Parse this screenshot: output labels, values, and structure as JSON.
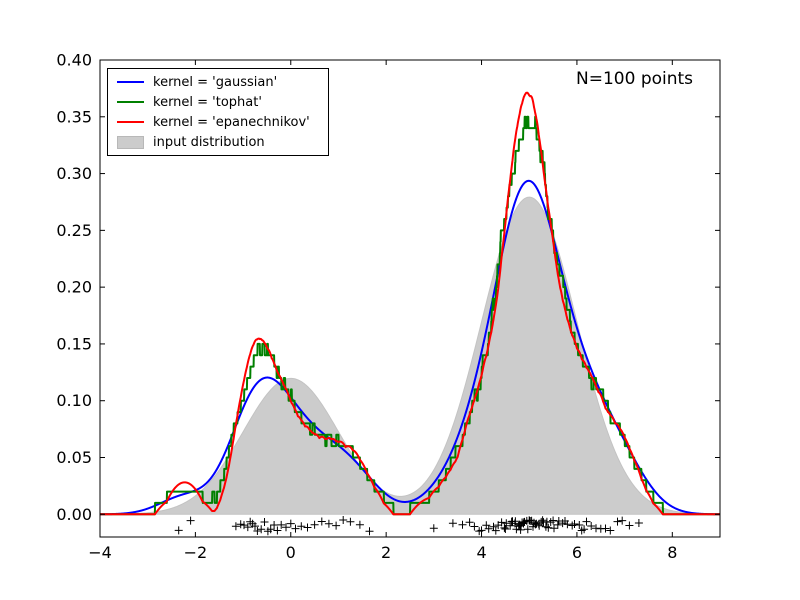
{
  "chart_data": {
    "type": "line",
    "title": "",
    "description": "1D kernel density estimation comparison of three kernels against the true input distribution, with data points shown as a rug of plus markers",
    "annotation": "N=100 points",
    "n_points": 100,
    "bandwidth": 0.5,
    "xlim": [
      -4,
      9
    ],
    "ylim": [
      -0.02,
      0.4
    ],
    "grid": false,
    "background": "#ffffff",
    "xticks": {
      "values": [
        -4,
        -2,
        0,
        2,
        4,
        6,
        8
      ],
      "labels": [
        "−4",
        "−2",
        "0",
        "2",
        "4",
        "6",
        "8"
      ]
    },
    "yticks": {
      "values": [
        0.0,
        0.05,
        0.1,
        0.15,
        0.2,
        0.25,
        0.3,
        0.35,
        0.4
      ],
      "labels": [
        "0.00",
        "0.05",
        "0.10",
        "0.15",
        "0.20",
        "0.25",
        "0.30",
        "0.35",
        "0.40"
      ]
    },
    "legend": {
      "position": "upper left"
    },
    "series": [
      {
        "name": "kernel = 'gaussian'",
        "kind": "kde",
        "kernel": "gaussian",
        "color": "#0000ff",
        "line_width": 2
      },
      {
        "name": "kernel = 'tophat'",
        "kind": "kde",
        "kernel": "tophat",
        "color": "#008000",
        "line_width": 2
      },
      {
        "name": "kernel = 'epanechnikov'",
        "kind": "kde",
        "kernel": "epanechnikov",
        "color": "#ff0000",
        "line_width": 2
      },
      {
        "name": "input distribution",
        "kind": "true-density",
        "fill_color": "#cccccc",
        "edge_color": "#c3c3c3",
        "components": [
          {
            "weight": 0.3,
            "mean": 0,
            "std": 1
          },
          {
            "weight": 0.7,
            "mean": 5,
            "std": 1
          }
        ]
      }
    ],
    "data_points": [
      -2.35,
      -2.1,
      -1.15,
      -1.05,
      -0.98,
      -0.9,
      -0.85,
      -0.8,
      -0.75,
      -0.7,
      -0.62,
      -0.55,
      -0.48,
      -0.42,
      -0.35,
      -0.28,
      -0.2,
      -0.1,
      0.0,
      0.1,
      0.22,
      0.35,
      0.5,
      0.65,
      0.8,
      0.95,
      1.1,
      1.25,
      1.45,
      1.65,
      3.0,
      3.4,
      3.6,
      3.75,
      3.85,
      3.95,
      4.0,
      4.1,
      4.15,
      4.25,
      4.3,
      4.35,
      4.42,
      4.48,
      4.5,
      4.52,
      4.6,
      4.63,
      4.65,
      4.7,
      4.71,
      4.73,
      4.78,
      4.8,
      4.82,
      4.83,
      4.85,
      4.88,
      4.89,
      4.9,
      4.95,
      4.97,
      5.0,
      5.02,
      5.05,
      5.08,
      5.1,
      5.13,
      5.15,
      5.2,
      5.21,
      5.25,
      5.28,
      5.3,
      5.35,
      5.37,
      5.4,
      5.45,
      5.5,
      5.52,
      5.6,
      5.62,
      5.7,
      5.75,
      5.8,
      5.9,
      5.95,
      6.05,
      6.1,
      6.15,
      6.2,
      6.3,
      6.4,
      6.5,
      6.6,
      6.7,
      6.85,
      6.95,
      7.1,
      7.3
    ],
    "rug": {
      "marker": "+",
      "color": "#000000",
      "y_offset_range": [
        -0.015,
        -0.005
      ]
    }
  }
}
